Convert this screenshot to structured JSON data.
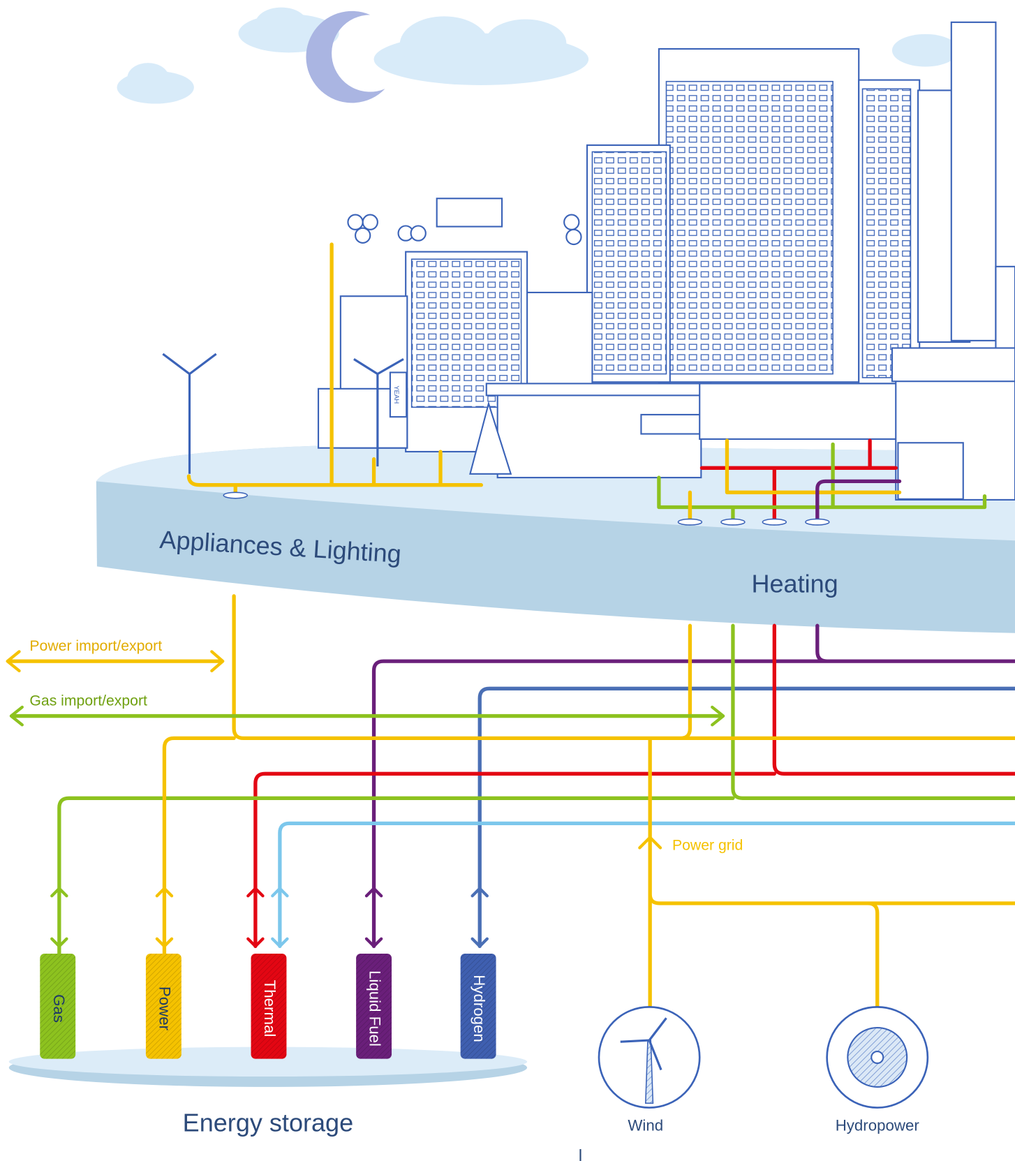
{
  "sectors": {
    "appliances": "Appliances & Lighting",
    "heating": "Heating"
  },
  "flows": {
    "power_trade": "Power import/export",
    "gas_trade": "Gas import/export",
    "power_grid": "Power grid"
  },
  "storage": {
    "title": "Energy storage",
    "items": [
      "Gas",
      "Power",
      "Thermal",
      "Liquid Fuel",
      "Hydrogen"
    ]
  },
  "sources": [
    "Wind",
    "Hydropower"
  ],
  "signs": [
    "YEAH"
  ]
}
